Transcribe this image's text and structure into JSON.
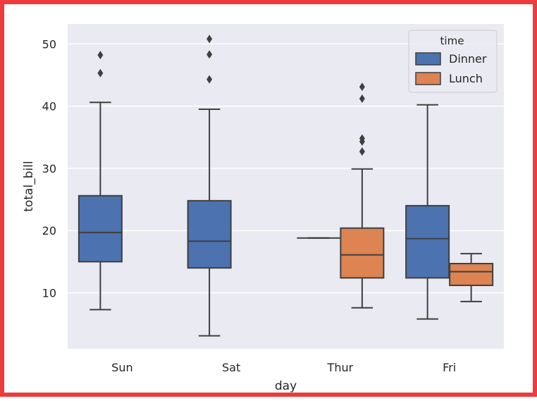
{
  "chart_data": {
    "type": "boxplot",
    "xlabel": "day",
    "ylabel": "total_bill",
    "categories": [
      "Sun",
      "Sat",
      "Thur",
      "Fri"
    ],
    "yticks": [
      10,
      20,
      30,
      40,
      50
    ],
    "ylim": [
      1.0,
      53.2
    ],
    "grid": true,
    "legend": {
      "title": "time",
      "placement": "top-right",
      "entries": [
        "Dinner",
        "Lunch"
      ]
    },
    "colors": {
      "Dinner": "#4c72b0",
      "Lunch": "#dd8452",
      "background": "#eaeaf2",
      "line": "#3f3f3f",
      "frame": "#ee3b3b"
    },
    "series": [
      {
        "name": "Dinner",
        "boxes": [
          {
            "category": "Sun",
            "whislo": 7.3,
            "q1": 15.0,
            "med": 19.7,
            "q3": 25.6,
            "whishi": 40.6,
            "fliers": [
              45.3,
              48.2
            ]
          },
          {
            "category": "Sat",
            "whislo": 3.1,
            "q1": 14.0,
            "med": 18.3,
            "q3": 24.8,
            "whishi": 39.5,
            "fliers": [
              44.3,
              48.3,
              50.8
            ]
          },
          {
            "category": "Thur",
            "whislo": 18.8,
            "q1": 18.8,
            "med": 18.8,
            "q3": 18.8,
            "whishi": 18.8,
            "fliers": []
          },
          {
            "category": "Fri",
            "whislo": 5.8,
            "q1": 12.4,
            "med": 18.7,
            "q3": 24.0,
            "whishi": 40.2,
            "fliers": []
          }
        ]
      },
      {
        "name": "Lunch",
        "boxes": [
          {
            "category": "Thur",
            "whislo": 7.6,
            "q1": 12.4,
            "med": 16.1,
            "q3": 20.4,
            "whishi": 29.9,
            "fliers": [
              32.7,
              34.3,
              34.8,
              41.2,
              43.1
            ]
          },
          {
            "category": "Fri",
            "whislo": 8.6,
            "q1": 11.2,
            "med": 13.4,
            "q3": 14.7,
            "whishi": 16.3,
            "fliers": []
          }
        ]
      }
    ]
  }
}
